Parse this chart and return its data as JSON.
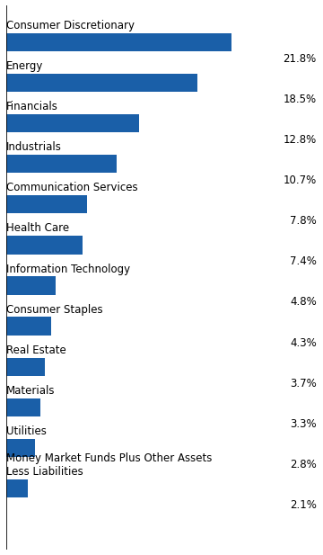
{
  "categories": [
    "Consumer Discretionary",
    "Energy",
    "Financials",
    "Industrials",
    "Communication Services",
    "Health Care",
    "Information Technology",
    "Consumer Staples",
    "Real Estate",
    "Materials",
    "Utilities",
    "Money Market Funds Plus Other Assets\nLess Liabilities"
  ],
  "values": [
    21.8,
    18.5,
    12.8,
    10.7,
    7.8,
    7.4,
    4.8,
    4.3,
    3.7,
    3.3,
    2.8,
    2.1
  ],
  "bar_color": "#1a5fa8",
  "label_fontsize": 8.5,
  "value_fontsize": 8.5,
  "background_color": "#ffffff",
  "xlim": [
    0,
    30
  ],
  "bar_height": 0.45
}
